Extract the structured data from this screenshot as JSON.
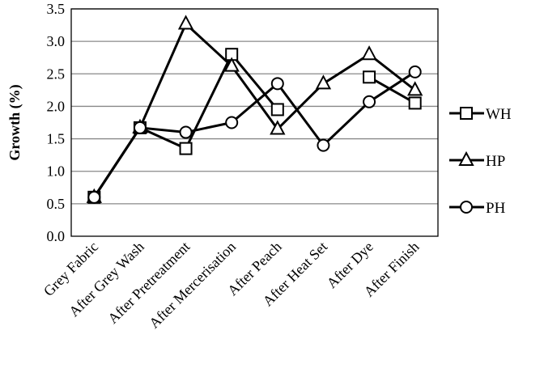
{
  "chart_data": {
    "type": "line",
    "title": "",
    "xlabel": "",
    "ylabel": "Growth (%)",
    "ylim": [
      0,
      3.5
    ],
    "yticks": [
      "0.0",
      "0.5",
      "1.0",
      "1.5",
      "2.0",
      "2.5",
      "3.0",
      "3.5"
    ],
    "grid": true,
    "legend_position": "right",
    "categories": [
      "Grey Fabric",
      "After Grey Wash",
      "After Pretreatment",
      "After Mercerisation",
      "After Peach",
      "After Heat Set",
      "After Dye",
      "After Finish"
    ],
    "series": [
      {
        "name": "WH",
        "marker": "square",
        "values": [
          0.6,
          1.67,
          1.35,
          2.8,
          1.95,
          null,
          2.45,
          2.05
        ]
      },
      {
        "name": "HP",
        "marker": "triangle",
        "values": [
          0.6,
          1.67,
          3.27,
          2.62,
          1.65,
          2.35,
          2.8,
          2.25
        ]
      },
      {
        "name": "PH",
        "marker": "circle",
        "values": [
          0.6,
          1.67,
          1.6,
          1.75,
          2.35,
          1.4,
          2.07,
          2.53
        ]
      }
    ],
    "colors": {
      "line": "#000000",
      "grid": "#888888"
    }
  }
}
